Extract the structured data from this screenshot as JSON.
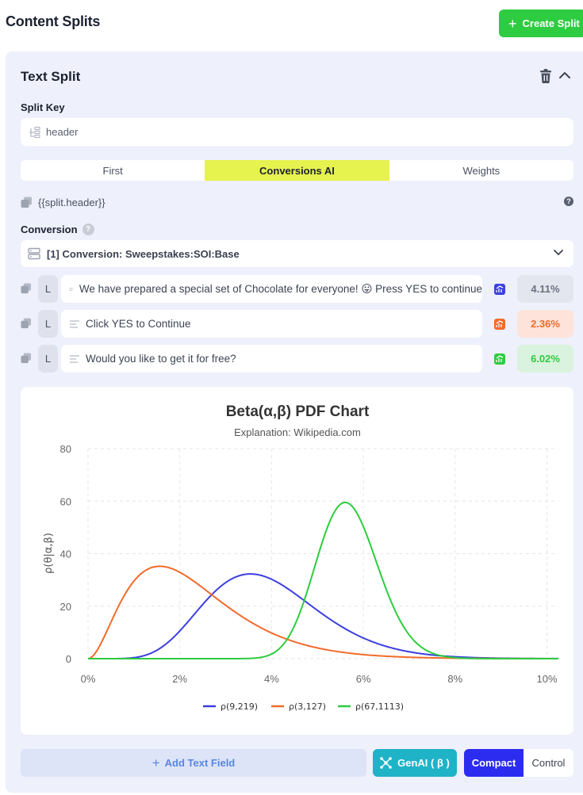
{
  "header": {
    "title": "Content Splits",
    "create_label": "Create Split"
  },
  "panel": {
    "title": "Text Split"
  },
  "split_key": {
    "label": "Split Key",
    "value": "header"
  },
  "tabs": [
    {
      "label": "First",
      "active": false
    },
    {
      "label": "Conversions AI",
      "active": true
    },
    {
      "label": "Weights",
      "active": false
    }
  ],
  "template_var": "{{split.header}}",
  "conversion": {
    "label": "Conversion",
    "selected": "[1] Conversion: Sweepstakes:SOI:Base"
  },
  "fields": [
    {
      "badge": "L",
      "text": "We have prepared a special set of Chocolate for everyone! 😛 Press YES to continue",
      "rate": "4.11%",
      "color": "#3b3fe0",
      "rate_bg": "#e4e6ef",
      "rate_color": "#6b7080"
    },
    {
      "badge": "L",
      "text": "Click YES to Continue",
      "rate": "2.36%",
      "color": "#f26b2a",
      "rate_bg": "#fde3da",
      "rate_color": "#f26b2a"
    },
    {
      "badge": "L",
      "text": "Would you like to get it for free?",
      "rate": "6.02%",
      "color": "#2ecc40",
      "rate_bg": "#daf3de",
      "rate_color": "#2ecc40"
    }
  ],
  "chart_data": {
    "type": "line",
    "title": "Beta(α,β) PDF Chart",
    "subtitle": "Explanation: Wikipedia.com",
    "ylabel": "ρ(θ|α,β)",
    "xlabel": "",
    "x_ticks": [
      "0%",
      "2%",
      "4%",
      "6%",
      "8%",
      "10%"
    ],
    "y_ticks": [
      "0",
      "20",
      "40",
      "60",
      "80"
    ],
    "xlim": [
      0,
      0.1025
    ],
    "ylim": [
      0,
      80
    ],
    "grid": true,
    "legend_position": "bottom",
    "series": [
      {
        "name": "ρ(9,219)",
        "alpha": 9,
        "beta": 219,
        "color": "#3b3fe0"
      },
      {
        "name": "ρ(3,127)",
        "alpha": 3,
        "beta": 127,
        "color": "#f26b2a"
      },
      {
        "name": "ρ(67,1113)",
        "alpha": 67,
        "beta": 1113,
        "color": "#2ecc40"
      }
    ]
  },
  "actions": {
    "add_label": "Add Text Field",
    "genai_label": "GenAI ( β )",
    "compact_label": "Compact",
    "control_label": "Control"
  }
}
